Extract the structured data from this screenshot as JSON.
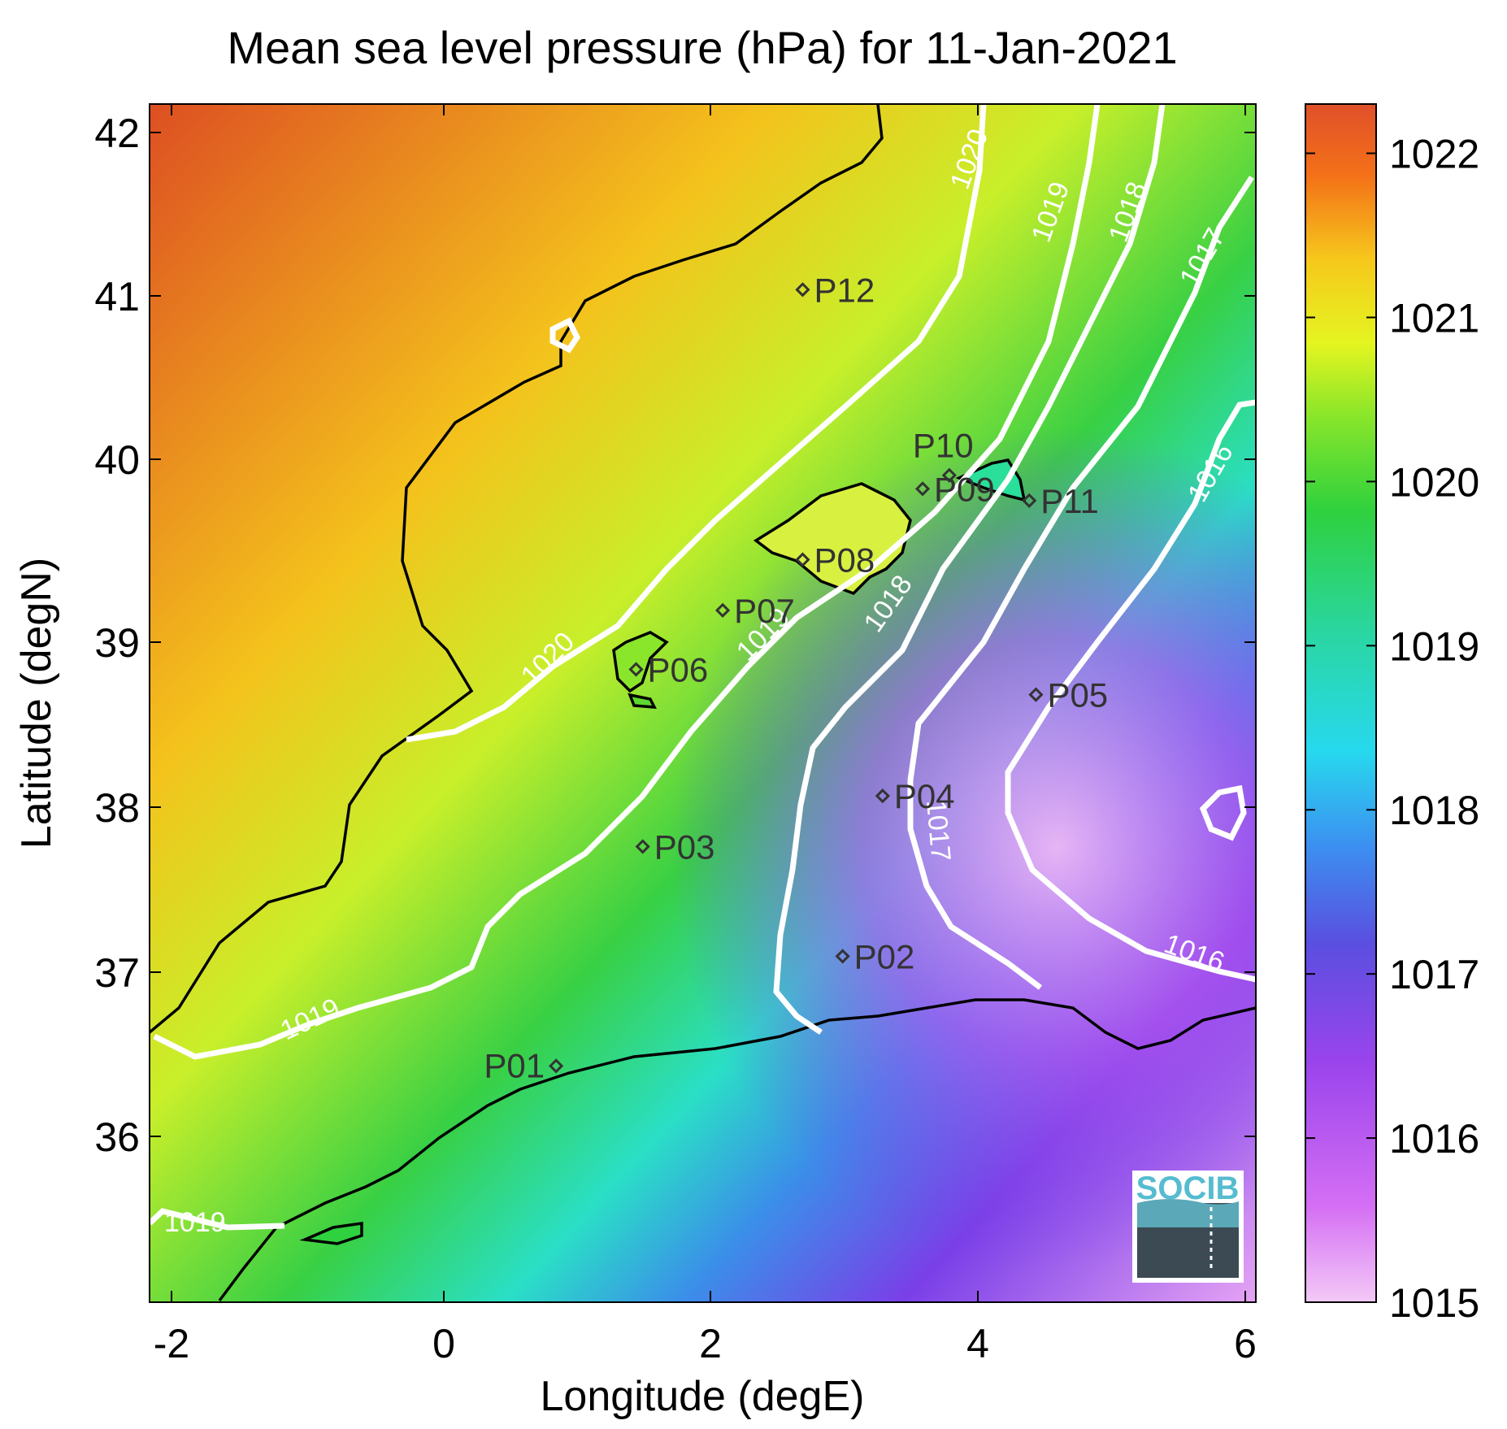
{
  "title": "Mean sea level pressure (hPa) for 11-Jan-2021",
  "xlabel": "Longitude (degE)",
  "ylabel": "Latitude (degN)",
  "x_ticks": [
    "-2",
    "0",
    "2",
    "4",
    "6"
  ],
  "y_ticks": [
    "42",
    "41",
    "40",
    "39",
    "38",
    "37",
    "36"
  ],
  "colorbar": {
    "ticks": [
      "1022",
      "1021",
      "1020",
      "1019",
      "1018",
      "1017",
      "1016",
      "1015"
    ],
    "range": [
      1015,
      1022.3
    ],
    "colors": [
      "#eec0f5",
      "#c250f2",
      "#6e42e0",
      "#3d9ff0",
      "#26e8e6",
      "#2dd16a",
      "#3cd23c",
      "#cdf22a",
      "#f5e020",
      "#f6b91a",
      "#f46f16",
      "#e0502a"
    ]
  },
  "map": {
    "lon_range": [
      -2.2,
      6.1
    ],
    "lat_range": [
      35.1,
      42.2
    ],
    "stations": [
      {
        "id": "P01",
        "lon": 0.85,
        "lat": 36.5
      },
      {
        "id": "P02",
        "lon": 3.0,
        "lat": 37.15
      },
      {
        "id": "P03",
        "lon": 1.5,
        "lat": 37.8
      },
      {
        "id": "P04",
        "lon": 3.3,
        "lat": 38.1
      },
      {
        "id": "P05",
        "lon": 4.45,
        "lat": 38.7
      },
      {
        "id": "P06",
        "lon": 1.45,
        "lat": 38.85
      },
      {
        "id": "P07",
        "lon": 2.1,
        "lat": 39.2
      },
      {
        "id": "P08",
        "lon": 2.7,
        "lat": 39.5
      },
      {
        "id": "P09",
        "lon": 3.6,
        "lat": 39.92
      },
      {
        "id": "P10",
        "lon": 3.8,
        "lat": 40.0
      },
      {
        "id": "P11",
        "lon": 4.4,
        "lat": 39.85
      },
      {
        "id": "P12",
        "lon": 2.7,
        "lat": 41.1
      }
    ],
    "contour_labels": [
      "1020",
      "1020",
      "1019",
      "1019",
      "1019",
      "1019",
      "1018",
      "1018",
      "1017",
      "1017",
      "1016",
      "1016"
    ]
  },
  "logo_text": "SOCIB"
}
